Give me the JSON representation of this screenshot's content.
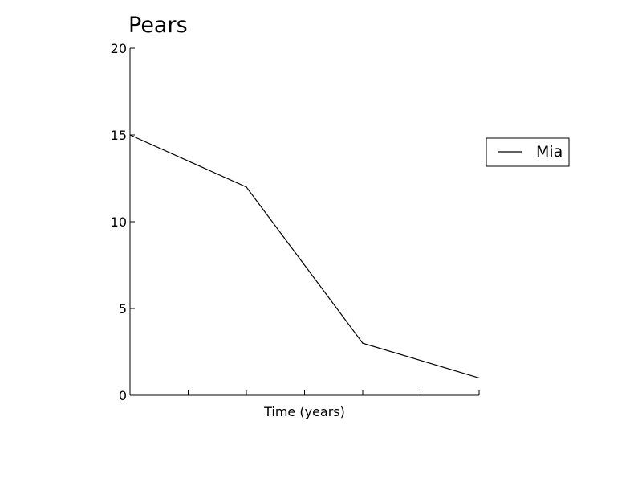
{
  "chart_data": {
    "type": "line",
    "title": "Pears",
    "xlabel": "Time (years)",
    "ylabel": "",
    "x": [
      0,
      1,
      2,
      3
    ],
    "xlim": [
      0,
      3
    ],
    "ylim": [
      0,
      20
    ],
    "yticks": [
      0,
      5,
      10,
      15,
      20
    ],
    "xticks_minor_count": 7,
    "grid": false,
    "legend_position": "right",
    "series": [
      {
        "name": "Mia",
        "values": [
          15,
          12,
          3,
          1
        ],
        "color": "#000000"
      }
    ]
  }
}
